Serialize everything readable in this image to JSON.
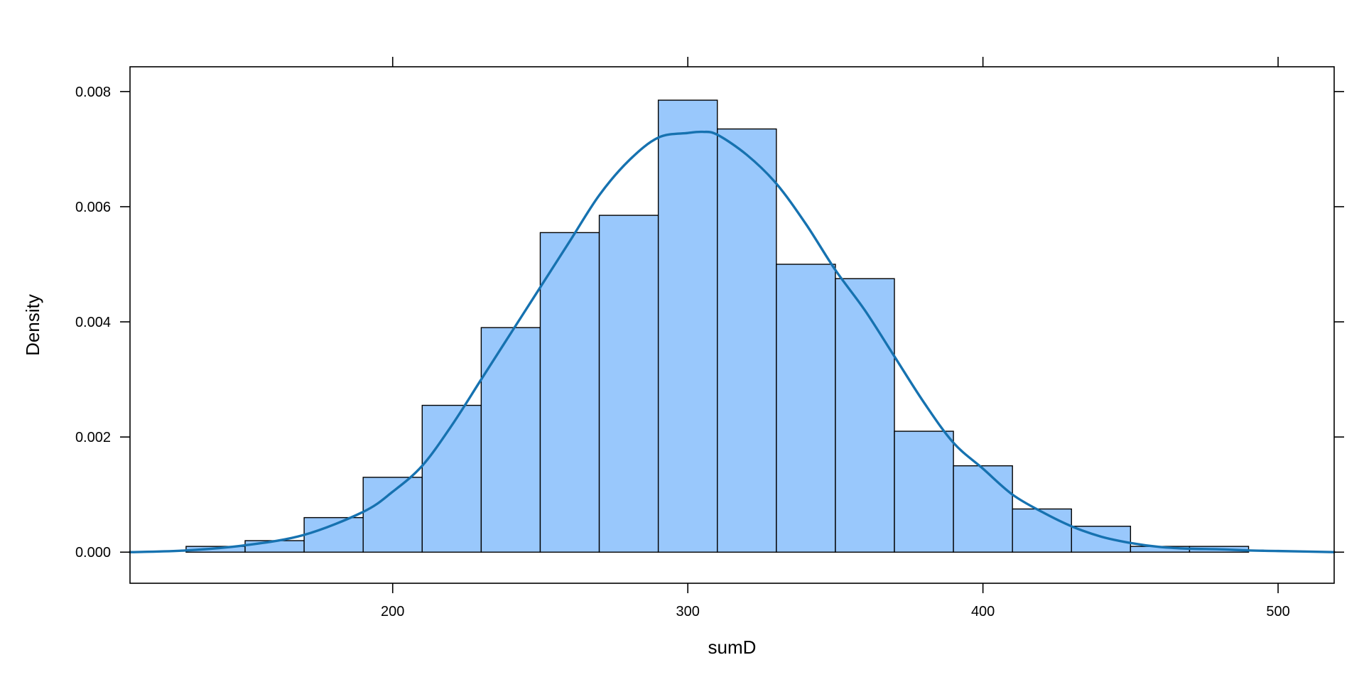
{
  "chart_data": {
    "type": "bar",
    "subtype": "histogram",
    "title": "",
    "xlabel": "sumD",
    "ylabel": "Density",
    "xlim": [
      111,
      519
    ],
    "ylim": [
      -0.00054,
      0.00843
    ],
    "x_ticks": [
      200,
      300,
      400,
      500
    ],
    "x_tick_labels": [
      "200",
      "300",
      "400",
      "500"
    ],
    "y_ticks": [
      0.0,
      0.002,
      0.004,
      0.006,
      0.008
    ],
    "y_tick_labels": [
      "0.000",
      "0.002",
      "0.004",
      "0.006",
      "0.008"
    ],
    "grid": false,
    "legend": "none",
    "bin_edges": [
      130,
      150,
      170,
      190,
      210,
      230,
      250,
      270,
      290,
      310,
      330,
      350,
      370,
      390,
      410,
      430,
      450,
      470,
      490
    ],
    "values": [
      0.0001,
      0.0002,
      0.0006,
      0.0013,
      0.00255,
      0.0039,
      0.00555,
      0.00585,
      0.00785,
      0.00735,
      0.005,
      0.00475,
      0.0021,
      0.0015,
      0.00075,
      0.00045,
      0.0001,
      0.0001
    ],
    "density_curve": {
      "x": [
        111,
        130,
        150,
        170,
        190,
        200,
        210,
        220,
        230,
        240,
        250,
        260,
        270,
        280,
        290,
        300,
        305,
        310,
        320,
        330,
        340,
        350,
        360,
        370,
        380,
        390,
        400,
        410,
        420,
        430,
        440,
        450,
        460,
        470,
        480,
        490,
        500,
        519
      ],
      "y": [
        0.0,
        3e-05,
        0.00012,
        0.0003,
        0.0007,
        0.00105,
        0.0015,
        0.0022,
        0.003,
        0.0038,
        0.0046,
        0.0054,
        0.0062,
        0.0068,
        0.0072,
        0.00728,
        0.0073,
        0.00725,
        0.0069,
        0.0064,
        0.0057,
        0.0049,
        0.0042,
        0.0034,
        0.0026,
        0.0019,
        0.00145,
        0.001,
        0.0007,
        0.00045,
        0.00027,
        0.00016,
        9e-05,
        6e-05,
        5e-05,
        3e-05,
        2e-05,
        0.0
      ],
      "color": "#1672b0"
    },
    "bar_color": "#99c8fc"
  }
}
